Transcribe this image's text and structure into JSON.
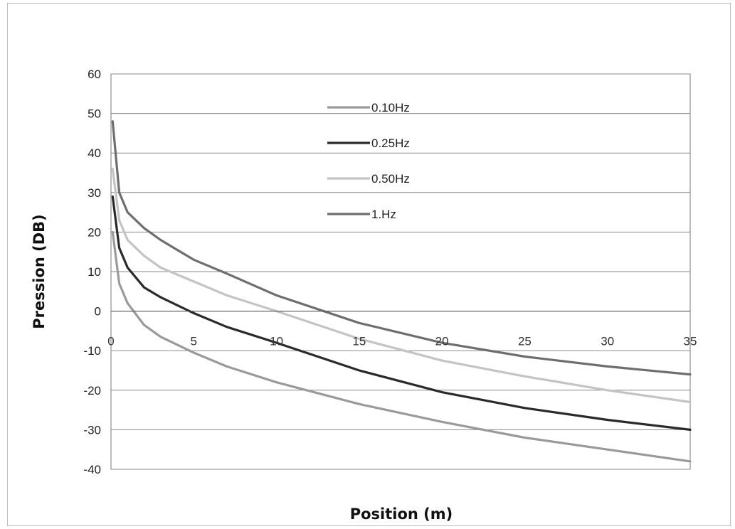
{
  "chart_data": {
    "type": "line",
    "title": "",
    "xlabel": "Position (m)",
    "ylabel": "Pression (DB)",
    "xlim": [
      0,
      35
    ],
    "ylim": [
      -40,
      60
    ],
    "xticks": [
      "0",
      "5",
      "10",
      "15",
      "20",
      "25",
      "30",
      "35"
    ],
    "yticks": [
      "60",
      "50",
      "40",
      "30",
      "20",
      "10",
      "0",
      "-10",
      "-20",
      "-30",
      "-40"
    ],
    "grid": "horizontal",
    "legend_position": "top-center",
    "series": [
      {
        "name": "0.10Hz",
        "color": "#9a9a9a",
        "x": [
          0.1,
          0.5,
          1,
          2,
          3,
          5,
          7,
          10,
          15,
          20,
          25,
          30,
          35
        ],
        "y": [
          20,
          7,
          2,
          -3.5,
          -6.5,
          -10.5,
          -14,
          -18,
          -23.5,
          -28,
          -32,
          -35,
          -38
        ]
      },
      {
        "name": "0.25Hz",
        "color": "#2a2a2a",
        "x": [
          0.1,
          0.5,
          1,
          2,
          3,
          5,
          7,
          10,
          15,
          20,
          25,
          30,
          35
        ],
        "y": [
          29,
          16,
          11,
          6,
          3.5,
          -0.5,
          -4,
          -8,
          -15,
          -20.5,
          -24.5,
          -27.5,
          -30
        ]
      },
      {
        "name": "0.50Hz",
        "color": "#c4c4c4",
        "x": [
          0.1,
          0.5,
          1,
          2,
          3,
          5,
          7,
          10,
          15,
          20,
          25,
          30,
          35
        ],
        "y": [
          36,
          23,
          18,
          14,
          11,
          7.5,
          4,
          0,
          -7,
          -12.5,
          -16.5,
          -20,
          -23
        ]
      },
      {
        "name": "1.Hz",
        "color": "#6e6e6e",
        "x": [
          0.1,
          0.5,
          1,
          2,
          3,
          5,
          7,
          10,
          15,
          20,
          25,
          30,
          35
        ],
        "y": [
          48,
          30,
          25,
          21,
          18,
          13,
          9.5,
          4,
          -3,
          -8,
          -11.5,
          -14,
          -16
        ]
      }
    ]
  }
}
